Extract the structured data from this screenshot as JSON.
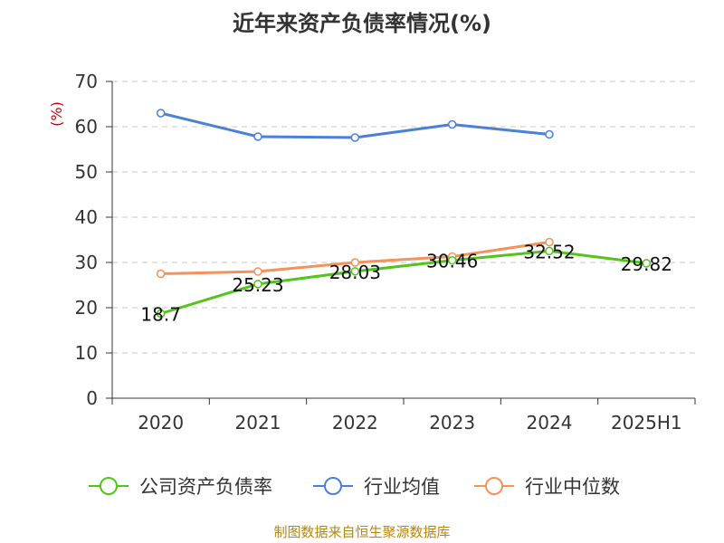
{
  "chart_data": {
    "type": "line",
    "title": "近年来资产负债率情况(%)",
    "ylabel": "(%)",
    "xlabel": "",
    "categories": [
      "2020",
      "2021",
      "2022",
      "2023",
      "2024",
      "2025H1"
    ],
    "ylim": [
      0,
      70
    ],
    "yticks": [
      0,
      10,
      20,
      30,
      40,
      50,
      60,
      70
    ],
    "grid": true,
    "legend_position": "bottom",
    "series": [
      {
        "name": "公司资产负债率",
        "color": "#52c41a",
        "values": [
          18.7,
          25.23,
          28.03,
          30.46,
          32.52,
          29.82
        ],
        "labels": [
          "18.7",
          "25.23",
          "28.03",
          "30.46",
          "32.52",
          "29.82"
        ]
      },
      {
        "name": "行业均值",
        "color": "#4a7fdb",
        "values": [
          63.0,
          57.8,
          57.6,
          60.5,
          58.3,
          null
        ]
      },
      {
        "name": "行业中位数",
        "color": "#f5915a",
        "values": [
          27.5,
          28.0,
          30.0,
          31.3,
          34.5,
          null
        ]
      }
    ]
  },
  "footer": {
    "source": "制图数据来自恒生聚源数据库"
  }
}
